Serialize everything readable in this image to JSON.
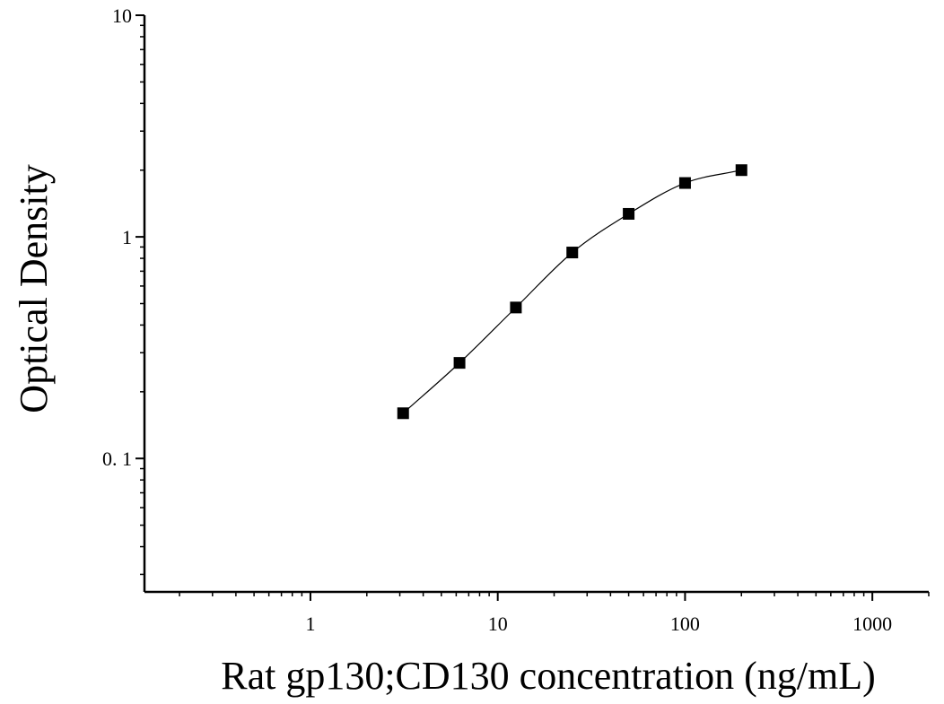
{
  "chart_data": {
    "type": "scatter",
    "xlabel": "Rat gp130;CD130 concentration (ng/mL)",
    "ylabel": "Optical Density",
    "xscale": "log",
    "yscale": "log",
    "xlim": [
      0.13,
      2000
    ],
    "ylim": [
      0.025,
      10
    ],
    "xticks": [
      {
        "value": 1,
        "label": "1"
      },
      {
        "value": 10,
        "label": "10"
      },
      {
        "value": 100,
        "label": "100"
      },
      {
        "value": 1000,
        "label": "1000"
      }
    ],
    "yticks": [
      {
        "value": 0.1,
        "label": "0. 1"
      },
      {
        "value": 1,
        "label": "1"
      },
      {
        "value": 10,
        "label": "10"
      }
    ],
    "grid": false,
    "series": [
      {
        "marker": "square",
        "color": "#000000",
        "x": [
          3.125,
          6.25,
          12.5,
          25,
          50,
          100,
          200
        ],
        "y": [
          0.16,
          0.27,
          0.48,
          0.85,
          1.27,
          1.75,
          2.0
        ]
      }
    ],
    "fit_curve": true
  }
}
